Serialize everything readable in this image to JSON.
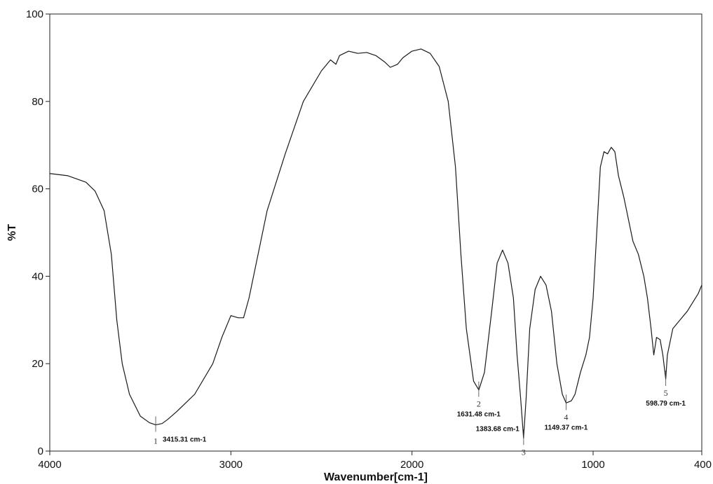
{
  "chart_data": {
    "type": "line",
    "title": "",
    "xlabel": "Wavenumber[cm-1]",
    "ylabel": "%T",
    "xlim": [
      4000,
      400
    ],
    "ylim": [
      0,
      100
    ],
    "x_reversed": true,
    "grid": false,
    "legend": "none",
    "x_ticks": [
      "4000",
      "3000",
      "2000",
      "1000",
      "400"
    ],
    "y_ticks": [
      "0",
      "20",
      "40",
      "60",
      "80",
      "100"
    ],
    "series": [
      {
        "color": "#1a1a1a",
        "points": [
          [
            4000,
            63.5
          ],
          [
            3900,
            63.0
          ],
          [
            3800,
            61.5
          ],
          [
            3750,
            59.5
          ],
          [
            3700,
            55.0
          ],
          [
            3660,
            45.0
          ],
          [
            3630,
            30.0
          ],
          [
            3600,
            20.0
          ],
          [
            3560,
            13.0
          ],
          [
            3500,
            8.0
          ],
          [
            3450,
            6.5
          ],
          [
            3415,
            6.0
          ],
          [
            3380,
            6.3
          ],
          [
            3350,
            7.2
          ],
          [
            3300,
            9.0
          ],
          [
            3200,
            13.0
          ],
          [
            3100,
            20.0
          ],
          [
            3050,
            26.0
          ],
          [
            3000,
            31.0
          ],
          [
            2960,
            30.5
          ],
          [
            2930,
            30.5
          ],
          [
            2900,
            35.0
          ],
          [
            2850,
            45.0
          ],
          [
            2800,
            55.0
          ],
          [
            2700,
            68.0
          ],
          [
            2600,
            80.0
          ],
          [
            2500,
            87.0
          ],
          [
            2450,
            89.5
          ],
          [
            2420,
            88.5
          ],
          [
            2400,
            90.5
          ],
          [
            2350,
            91.5
          ],
          [
            2300,
            91.0
          ],
          [
            2250,
            91.2
          ],
          [
            2200,
            90.5
          ],
          [
            2150,
            89.0
          ],
          [
            2120,
            87.8
          ],
          [
            2080,
            88.5
          ],
          [
            2050,
            90.0
          ],
          [
            2000,
            91.5
          ],
          [
            1950,
            92.0
          ],
          [
            1900,
            91.0
          ],
          [
            1850,
            88.0
          ],
          [
            1800,
            80.0
          ],
          [
            1760,
            65.0
          ],
          [
            1730,
            45.0
          ],
          [
            1700,
            28.0
          ],
          [
            1660,
            16.0
          ],
          [
            1631,
            14.0
          ],
          [
            1600,
            18.0
          ],
          [
            1560,
            32.0
          ],
          [
            1530,
            43.0
          ],
          [
            1500,
            46.0
          ],
          [
            1470,
            43.0
          ],
          [
            1440,
            35.0
          ],
          [
            1420,
            22.0
          ],
          [
            1400,
            12.0
          ],
          [
            1384,
            3.0
          ],
          [
            1370,
            12.0
          ],
          [
            1350,
            28.0
          ],
          [
            1320,
            37.0
          ],
          [
            1290,
            40.0
          ],
          [
            1260,
            38.0
          ],
          [
            1230,
            32.0
          ],
          [
            1200,
            20.0
          ],
          [
            1170,
            13.0
          ],
          [
            1149,
            11.0
          ],
          [
            1120,
            11.5
          ],
          [
            1100,
            13.0
          ],
          [
            1070,
            18.0
          ],
          [
            1040,
            22.0
          ],
          [
            1020,
            26.0
          ],
          [
            1000,
            35.0
          ],
          [
            980,
            50.0
          ],
          [
            960,
            65.0
          ],
          [
            940,
            68.5
          ],
          [
            920,
            68.0
          ],
          [
            900,
            69.5
          ],
          [
            880,
            68.5
          ],
          [
            860,
            63.0
          ],
          [
            830,
            58.0
          ],
          [
            800,
            52.0
          ],
          [
            780,
            48.0
          ],
          [
            750,
            45.0
          ],
          [
            720,
            40.0
          ],
          [
            700,
            35.0
          ],
          [
            680,
            28.0
          ],
          [
            665,
            22.0
          ],
          [
            650,
            26.0
          ],
          [
            630,
            25.5
          ],
          [
            615,
            22.0
          ],
          [
            599,
            16.5
          ],
          [
            590,
            22.0
          ],
          [
            560,
            28.0
          ],
          [
            520,
            30.0
          ],
          [
            480,
            32.0
          ],
          [
            450,
            34.0
          ],
          [
            420,
            36.0
          ],
          [
            400,
            38.0
          ]
        ]
      }
    ],
    "peaks": [
      {
        "number": "1",
        "label": "3415.31 cm-1",
        "x": 3415.31,
        "y": 6.0,
        "number_side": "below-left",
        "label_side": "below-right"
      },
      {
        "number": "2",
        "label": "1631.48 cm-1",
        "x": 1631.48,
        "y": 14.0,
        "number_side": "below",
        "label_side": "below"
      },
      {
        "number": "3",
        "label": "1383.68 cm-1",
        "x": 1383.68,
        "y": 3.0,
        "number_side": "below",
        "label_side": "left"
      },
      {
        "number": "4",
        "label": "1149.37 cm-1",
        "x": 1149.37,
        "y": 11.0,
        "number_side": "below",
        "label_side": "below"
      },
      {
        "number": "5",
        "label": "598.79 cm-1",
        "x": 598.79,
        "y": 16.5,
        "number_side": "below",
        "label_side": "below"
      }
    ]
  }
}
